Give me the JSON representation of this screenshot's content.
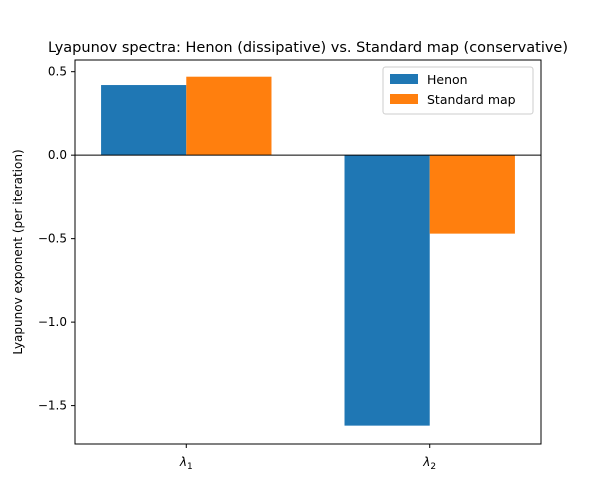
{
  "chart_data": {
    "type": "bar",
    "title": "Lyapunov spectra: Henon (dissipative) vs. Standard map (conservative)",
    "xlabel": "",
    "ylabel": "Lyapunov exponent (per iteration)",
    "categories": [
      {
        "base": "λ",
        "sub": "1"
      },
      {
        "base": "λ",
        "sub": "2"
      }
    ],
    "series": [
      {
        "name": "Henon",
        "color": "#1f77b4",
        "values": [
          0.42,
          -1.62
        ]
      },
      {
        "name": "Standard map",
        "color": "#ff7f0e",
        "values": [
          0.47,
          -0.47
        ]
      }
    ],
    "ylim": [
      -1.73,
      0.57
    ],
    "yticks": [
      {
        "value": 0.5,
        "label": "0.5"
      },
      {
        "value": 0.0,
        "label": "0.0"
      },
      {
        "value": -0.5,
        "label": "−0.5"
      },
      {
        "value": -1.0,
        "label": "−1.0"
      },
      {
        "value": -1.5,
        "label": "−1.5"
      }
    ],
    "zero_line": true,
    "grid": false,
    "legend_position": "top-right"
  }
}
